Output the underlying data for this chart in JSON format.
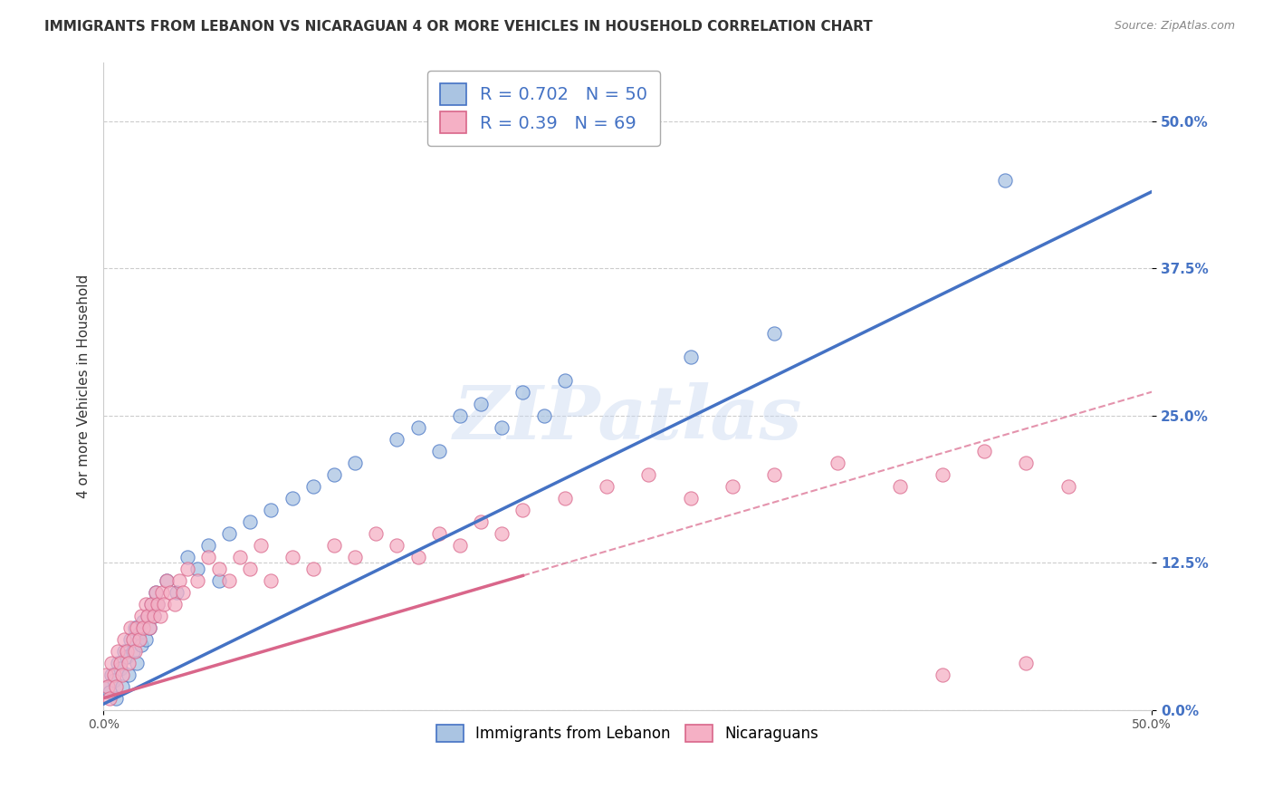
{
  "title": "IMMIGRANTS FROM LEBANON VS NICARAGUAN 4 OR MORE VEHICLES IN HOUSEHOLD CORRELATION CHART",
  "source": "Source: ZipAtlas.com",
  "ylabel": "4 or more Vehicles in Household",
  "ytick_values": [
    0.0,
    12.5,
    25.0,
    37.5,
    50.0
  ],
  "xlim": [
    0.0,
    50.0
  ],
  "ylim": [
    0.0,
    55.0
  ],
  "legend_label1": "Immigrants from Lebanon",
  "legend_label2": "Nicaraguans",
  "R1": 0.702,
  "N1": 50,
  "R2": 0.39,
  "N2": 69,
  "color1": "#aac4e2",
  "color2": "#f5b0c5",
  "line1_color": "#4472c4",
  "line2_color": "#d9668a",
  "watermark": "ZIPatlas",
  "background_color": "#ffffff",
  "grid_color": "#cccccc",
  "title_color": "#333333",
  "source_color": "#888888",
  "tick_color": "#4472c4",
  "scatter1_x": [
    0.2,
    0.3,
    0.4,
    0.5,
    0.6,
    0.7,
    0.8,
    0.9,
    1.0,
    1.1,
    1.2,
    1.3,
    1.4,
    1.5,
    1.6,
    1.7,
    1.8,
    1.9,
    2.0,
    2.1,
    2.2,
    2.3,
    2.4,
    2.5,
    2.6,
    3.0,
    3.5,
    4.0,
    4.5,
    5.0,
    5.5,
    6.0,
    7.0,
    8.0,
    9.0,
    10.0,
    11.0,
    12.0,
    14.0,
    15.0,
    16.0,
    17.0,
    18.0,
    19.0,
    20.0,
    21.0,
    22.0,
    28.0,
    32.0,
    43.0
  ],
  "scatter1_y": [
    2.0,
    1.5,
    3.0,
    2.5,
    1.0,
    4.0,
    3.5,
    2.0,
    5.0,
    4.5,
    3.0,
    6.0,
    5.0,
    7.0,
    4.0,
    6.5,
    5.5,
    7.5,
    6.0,
    8.0,
    7.0,
    9.0,
    8.0,
    10.0,
    9.0,
    11.0,
    10.0,
    13.0,
    12.0,
    14.0,
    11.0,
    15.0,
    16.0,
    17.0,
    18.0,
    19.0,
    20.0,
    21.0,
    23.0,
    24.0,
    22.0,
    25.0,
    26.0,
    24.0,
    27.0,
    25.0,
    28.0,
    30.0,
    32.0,
    45.0
  ],
  "scatter2_x": [
    0.1,
    0.2,
    0.3,
    0.4,
    0.5,
    0.6,
    0.7,
    0.8,
    0.9,
    1.0,
    1.1,
    1.2,
    1.3,
    1.4,
    1.5,
    1.6,
    1.7,
    1.8,
    1.9,
    2.0,
    2.1,
    2.2,
    2.3,
    2.4,
    2.5,
    2.6,
    2.7,
    2.8,
    2.9,
    3.0,
    3.2,
    3.4,
    3.6,
    3.8,
    4.0,
    4.5,
    5.0,
    5.5,
    6.0,
    6.5,
    7.0,
    7.5,
    8.0,
    9.0,
    10.0,
    11.0,
    12.0,
    13.0,
    14.0,
    15.0,
    16.0,
    17.0,
    18.0,
    19.0,
    20.0,
    22.0,
    24.0,
    26.0,
    28.0,
    30.0,
    32.0,
    35.0,
    38.0,
    40.0,
    42.0,
    44.0,
    46.0,
    40.0,
    44.0
  ],
  "scatter2_y": [
    3.0,
    2.0,
    1.0,
    4.0,
    3.0,
    2.0,
    5.0,
    4.0,
    3.0,
    6.0,
    5.0,
    4.0,
    7.0,
    6.0,
    5.0,
    7.0,
    6.0,
    8.0,
    7.0,
    9.0,
    8.0,
    7.0,
    9.0,
    8.0,
    10.0,
    9.0,
    8.0,
    10.0,
    9.0,
    11.0,
    10.0,
    9.0,
    11.0,
    10.0,
    12.0,
    11.0,
    13.0,
    12.0,
    11.0,
    13.0,
    12.0,
    14.0,
    11.0,
    13.0,
    12.0,
    14.0,
    13.0,
    15.0,
    14.0,
    13.0,
    15.0,
    14.0,
    16.0,
    15.0,
    17.0,
    18.0,
    19.0,
    20.0,
    18.0,
    19.0,
    20.0,
    21.0,
    19.0,
    20.0,
    22.0,
    21.0,
    19.0,
    3.0,
    4.0
  ],
  "line1_x_start": 0.0,
  "line1_y_start": 0.5,
  "line1_x_end": 50.0,
  "line1_y_end": 44.0,
  "line2_solid_x_end": 20.0,
  "line2_x_start": 0.0,
  "line2_y_start": 1.0,
  "line2_x_end": 50.0,
  "line2_y_end": 27.0
}
